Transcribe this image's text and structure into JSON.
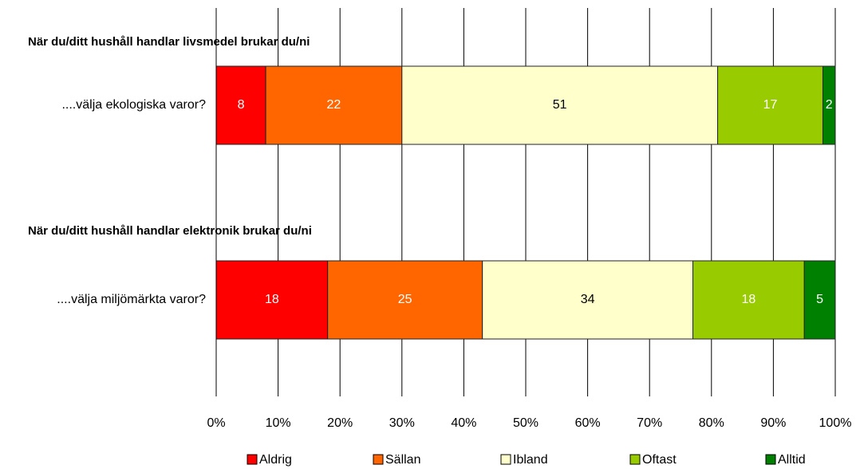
{
  "chart_data": {
    "type": "stacked_barh",
    "group_titles": [
      "När du/ditt hushåll handlar livsmedel brukar du/ni",
      "När du/ditt hushåll handlar elektronik brukar du/ni"
    ],
    "categories": [
      "....välja ekologiska varor?",
      "....välja miljömärkta varor?"
    ],
    "series": [
      {
        "name": "Aldrig",
        "color": "#ff0000",
        "label_color": "#ffffff",
        "values": [
          8,
          18
        ]
      },
      {
        "name": "Sällan",
        "color": "#ff6600",
        "label_color": "#ffffff",
        "values": [
          22,
          25
        ]
      },
      {
        "name": "Ibland",
        "color": "#ffffcc",
        "label_color": "#000000",
        "values": [
          51,
          34
        ]
      },
      {
        "name": "Oftast",
        "color": "#99cc00",
        "label_color": "#ffffff",
        "values": [
          17,
          18
        ]
      },
      {
        "name": "Alltid",
        "color": "#008000",
        "label_color": "#ffffff",
        "values": [
          2,
          5
        ]
      }
    ],
    "xlim": [
      0,
      100
    ],
    "xticks": [
      {
        "value": 0,
        "label": "0%"
      },
      {
        "value": 10,
        "label": "10%"
      },
      {
        "value": 20,
        "label": "20%"
      },
      {
        "value": 30,
        "label": "30%"
      },
      {
        "value": 40,
        "label": "40%"
      },
      {
        "value": 50,
        "label": "50%"
      },
      {
        "value": 60,
        "label": "60%"
      },
      {
        "value": 70,
        "label": "70%"
      },
      {
        "value": 80,
        "label": "80%"
      },
      {
        "value": 90,
        "label": "90%"
      },
      {
        "value": 100,
        "label": "100%"
      }
    ],
    "grid": true,
    "legend": "bottom"
  }
}
